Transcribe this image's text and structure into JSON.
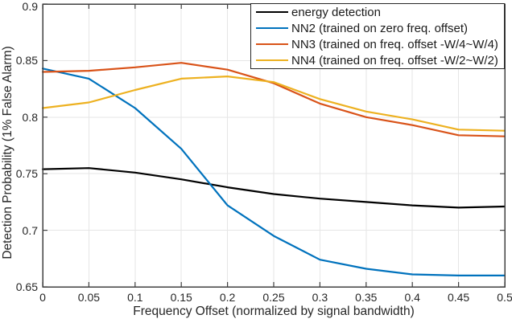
{
  "chart_data": {
    "type": "line",
    "title": "",
    "xlabel": "Frequency Offset (normalized by signal bandwidth)",
    "ylabel": "Detection Probability (1% False Alarm)",
    "xlim": [
      0,
      0.5
    ],
    "ylim": [
      0.65,
      0.9
    ],
    "x_ticks": [
      0,
      0.05,
      0.1,
      0.15,
      0.2,
      0.25,
      0.3,
      0.35,
      0.4,
      0.45,
      0.5
    ],
    "x_tick_labels": [
      "0",
      "0.05",
      "0.1",
      "0.15",
      "0.2",
      "0.25",
      "0.3",
      "0.35",
      "0.4",
      "0.45",
      "0.5"
    ],
    "y_ticks": [
      0.65,
      0.7,
      0.75,
      0.8,
      0.85,
      0.9
    ],
    "y_tick_labels": [
      "0.65",
      "0.7",
      "0.75",
      "0.8",
      "0.85",
      "0.9"
    ],
    "grid": true,
    "legend_position": "northeast",
    "colors": {
      "axis": "#404040",
      "grid": "#e6e6e6",
      "tick_label": "#262626"
    },
    "x": [
      0,
      0.05,
      0.1,
      0.15,
      0.2,
      0.25,
      0.3,
      0.35,
      0.4,
      0.45,
      0.5
    ],
    "series": [
      {
        "id": "energy-detection",
        "name": "energy detection",
        "color": "#000000",
        "values": [
          0.754,
          0.755,
          0.751,
          0.745,
          0.738,
          0.732,
          0.728,
          0.725,
          0.722,
          0.72,
          0.721
        ]
      },
      {
        "id": "nn2",
        "name": "NN2 (trained on zero freq. offset)",
        "color": "#0072BD",
        "values": [
          0.843,
          0.834,
          0.808,
          0.772,
          0.722,
          0.695,
          0.674,
          0.666,
          0.661,
          0.66,
          0.66
        ]
      },
      {
        "id": "nn3",
        "name": "NN3 (trained on freq. offset -W/4~W/4)",
        "color": "#D95319",
        "values": [
          0.84,
          0.841,
          0.844,
          0.848,
          0.842,
          0.83,
          0.812,
          0.8,
          0.793,
          0.784,
          0.783
        ]
      },
      {
        "id": "nn4",
        "name": "NN4 (trained on freq. offset -W/2~W/2)",
        "color": "#EDB120",
        "values": [
          0.808,
          0.813,
          0.824,
          0.834,
          0.836,
          0.831,
          0.816,
          0.805,
          0.798,
          0.789,
          0.788
        ]
      }
    ]
  }
}
